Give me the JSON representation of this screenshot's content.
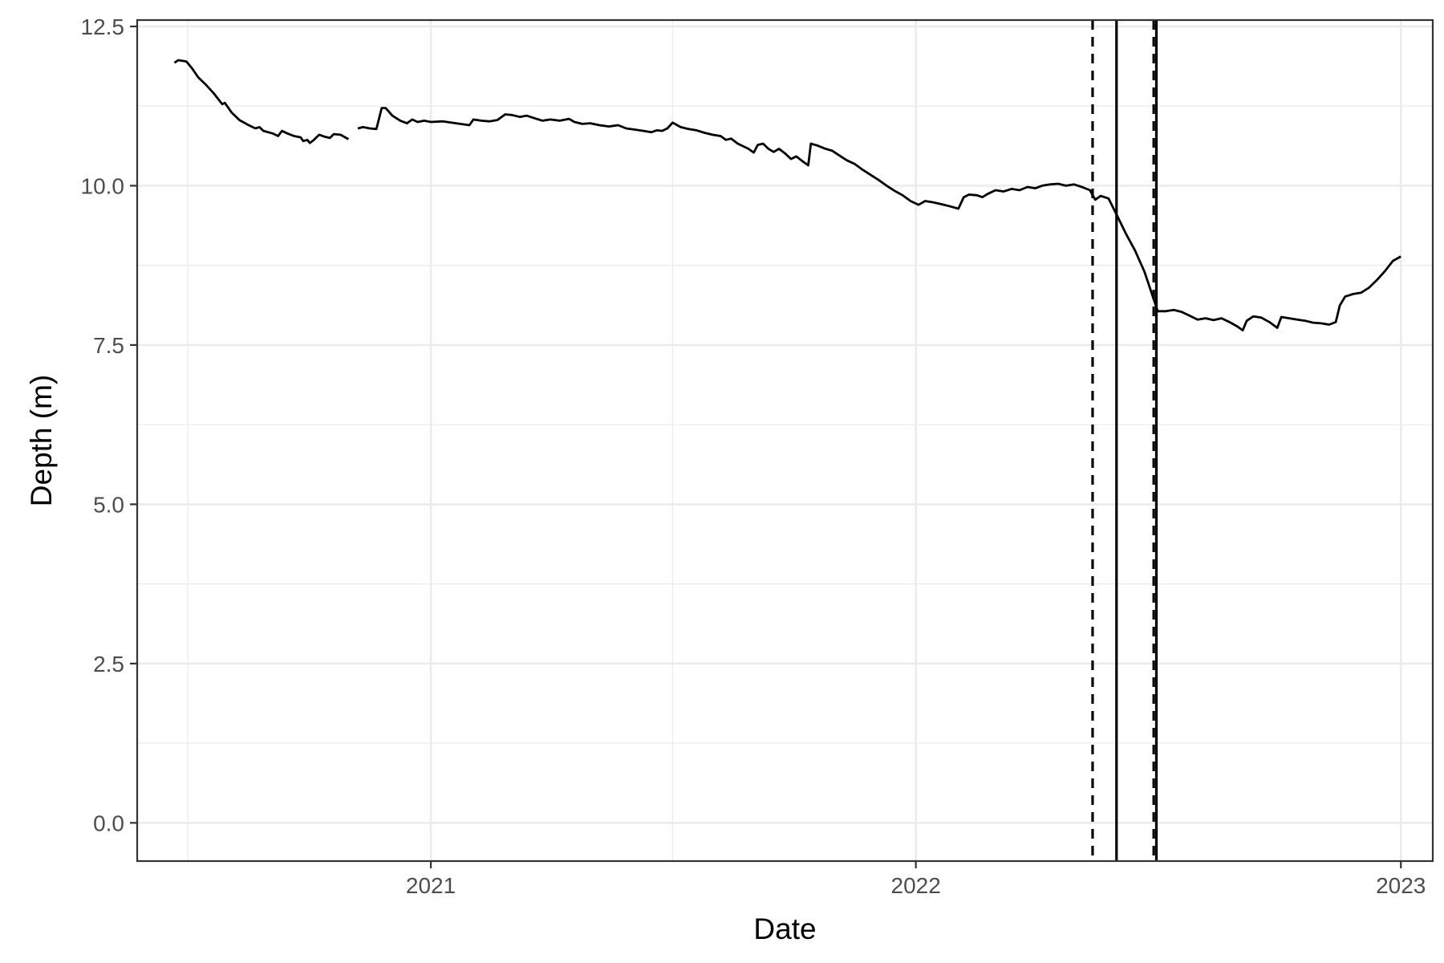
{
  "chart_data": {
    "type": "line",
    "title": "",
    "xlabel": "Date",
    "ylabel": "Depth (m)",
    "x_type": "date",
    "xlim": [
      "2020-05-25",
      "2023-01-25"
    ],
    "ylim": [
      -0.6,
      12.6
    ],
    "x_ticks": [
      {
        "date": "2021-01-01",
        "label": "2021"
      },
      {
        "date": "2022-01-01",
        "label": "2022"
      },
      {
        "date": "2023-01-01",
        "label": "2023"
      }
    ],
    "x_minor_dates": [
      "2020-07-02",
      "2021-07-02",
      "2022-07-02"
    ],
    "y_ticks": [
      {
        "value": 0.0,
        "label": "0.0"
      },
      {
        "value": 2.5,
        "label": "2.5"
      },
      {
        "value": 5.0,
        "label": "5.0"
      },
      {
        "value": 7.5,
        "label": "7.5"
      },
      {
        "value": 10.0,
        "label": "10.0"
      },
      {
        "value": 12.5,
        "label": "12.5"
      }
    ],
    "y_minor": [
      1.25,
      3.75,
      6.25,
      8.75,
      11.25
    ],
    "grid": true,
    "legend": "none",
    "series": [
      {
        "segments": [
          [
            [
              "2020-06-22",
              11.93
            ],
            [
              "2020-06-25",
              11.97
            ],
            [
              "2020-07-01",
              11.95
            ],
            [
              "2020-07-05",
              11.85
            ],
            [
              "2020-07-10",
              11.7
            ],
            [
              "2020-07-16",
              11.58
            ],
            [
              "2020-07-22",
              11.44
            ],
            [
              "2020-07-28",
              11.28
            ],
            [
              "2020-07-30",
              11.3
            ],
            [
              "2020-08-04",
              11.15
            ],
            [
              "2020-08-10",
              11.03
            ],
            [
              "2020-08-16",
              10.96
            ],
            [
              "2020-08-22",
              10.9
            ],
            [
              "2020-08-25",
              10.92
            ],
            [
              "2020-08-28",
              10.86
            ],
            [
              "2020-09-04",
              10.82
            ],
            [
              "2020-09-08",
              10.78
            ],
            [
              "2020-09-11",
              10.86
            ],
            [
              "2020-09-15",
              10.82
            ],
            [
              "2020-09-20",
              10.78
            ],
            [
              "2020-09-25",
              10.76
            ],
            [
              "2020-09-27",
              10.7
            ],
            [
              "2020-09-30",
              10.72
            ],
            [
              "2020-10-02",
              10.67
            ],
            [
              "2020-10-05",
              10.72
            ],
            [
              "2020-10-09",
              10.8
            ],
            [
              "2020-10-13",
              10.77
            ],
            [
              "2020-10-17",
              10.75
            ],
            [
              "2020-10-20",
              10.81
            ],
            [
              "2020-10-25",
              10.8
            ],
            [
              "2020-10-31",
              10.73
            ]
          ],
          [
            [
              "2020-11-07",
              10.9
            ],
            [
              "2020-11-11",
              10.92
            ],
            [
              "2020-11-16",
              10.9
            ],
            [
              "2020-11-21",
              10.89
            ],
            [
              "2020-11-25",
              11.22
            ],
            [
              "2020-11-28",
              11.22
            ],
            [
              "2020-12-03",
              11.1
            ],
            [
              "2020-12-09",
              11.02
            ],
            [
              "2020-12-14",
              10.98
            ],
            [
              "2020-12-18",
              11.04
            ],
            [
              "2020-12-22",
              11.0
            ],
            [
              "2020-12-27",
              11.02
            ],
            [
              "2021-01-01",
              11.0
            ],
            [
              "2021-01-10",
              11.01
            ],
            [
              "2021-01-20",
              10.98
            ],
            [
              "2021-01-30",
              10.95
            ],
            [
              "2021-02-02",
              11.04
            ],
            [
              "2021-02-08",
              11.02
            ],
            [
              "2021-02-14",
              11.01
            ],
            [
              "2021-02-20",
              11.03
            ],
            [
              "2021-02-26",
              11.12
            ],
            [
              "2021-03-03",
              11.11
            ],
            [
              "2021-03-09",
              11.08
            ],
            [
              "2021-03-14",
              11.1
            ],
            [
              "2021-03-20",
              11.06
            ],
            [
              "2021-03-26",
              11.02
            ],
            [
              "2021-04-01",
              11.04
            ],
            [
              "2021-04-08",
              11.02
            ],
            [
              "2021-04-15",
              11.05
            ],
            [
              "2021-04-19",
              11.0
            ],
            [
              "2021-04-25",
              10.97
            ],
            [
              "2021-05-01",
              10.98
            ],
            [
              "2021-05-08",
              10.95
            ],
            [
              "2021-05-15",
              10.93
            ],
            [
              "2021-05-22",
              10.95
            ],
            [
              "2021-05-28",
              10.9
            ],
            [
              "2021-06-04",
              10.88
            ],
            [
              "2021-06-10",
              10.86
            ],
            [
              "2021-06-16",
              10.84
            ],
            [
              "2021-06-20",
              10.87
            ],
            [
              "2021-06-24",
              10.86
            ],
            [
              "2021-06-28",
              10.9
            ],
            [
              "2021-07-02",
              10.99
            ],
            [
              "2021-07-08",
              10.92
            ],
            [
              "2021-07-14",
              10.89
            ],
            [
              "2021-07-20",
              10.87
            ],
            [
              "2021-07-26",
              10.83
            ],
            [
              "2021-08-01",
              10.8
            ],
            [
              "2021-08-07",
              10.78
            ],
            [
              "2021-08-11",
              10.72
            ],
            [
              "2021-08-15",
              10.74
            ],
            [
              "2021-08-20",
              10.66
            ],
            [
              "2021-08-28",
              10.58
            ],
            [
              "2021-09-01",
              10.52
            ],
            [
              "2021-09-04",
              10.64
            ],
            [
              "2021-09-08",
              10.66
            ],
            [
              "2021-09-12",
              10.58
            ],
            [
              "2021-09-16",
              10.53
            ],
            [
              "2021-09-20",
              10.58
            ],
            [
              "2021-09-25",
              10.5
            ],
            [
              "2021-09-29",
              10.42
            ],
            [
              "2021-10-03",
              10.46
            ],
            [
              "2021-10-08",
              10.38
            ],
            [
              "2021-10-12",
              10.32
            ],
            [
              "2021-10-14",
              10.66
            ],
            [
              "2021-10-19",
              10.63
            ],
            [
              "2021-10-25",
              10.58
            ],
            [
              "2021-10-30",
              10.55
            ],
            [
              "2021-11-04",
              10.48
            ],
            [
              "2021-11-10",
              10.4
            ],
            [
              "2021-11-16",
              10.34
            ],
            [
              "2021-11-22",
              10.25
            ],
            [
              "2021-11-28",
              10.17
            ],
            [
              "2021-12-04",
              10.09
            ],
            [
              "2021-12-10",
              10.0
            ],
            [
              "2021-12-16",
              9.92
            ],
            [
              "2021-12-22",
              9.85
            ],
            [
              "2021-12-28",
              9.76
            ],
            [
              "2022-01-03",
              9.7
            ],
            [
              "2022-01-08",
              9.76
            ],
            [
              "2022-01-14",
              9.74
            ],
            [
              "2022-01-20",
              9.71
            ],
            [
              "2022-01-26",
              9.68
            ],
            [
              "2022-02-02",
              9.64
            ],
            [
              "2022-02-06",
              9.82
            ],
            [
              "2022-02-10",
              9.86
            ],
            [
              "2022-02-16",
              9.85
            ],
            [
              "2022-02-20",
              9.82
            ],
            [
              "2022-02-24",
              9.87
            ],
            [
              "2022-03-02",
              9.93
            ],
            [
              "2022-03-08",
              9.91
            ],
            [
              "2022-03-14",
              9.95
            ],
            [
              "2022-03-20",
              9.93
            ],
            [
              "2022-03-26",
              9.98
            ],
            [
              "2022-04-01",
              9.96
            ],
            [
              "2022-04-06",
              10.0
            ],
            [
              "2022-04-12",
              10.02
            ],
            [
              "2022-04-18",
              10.03
            ],
            [
              "2022-04-24",
              10.0
            ],
            [
              "2022-04-30",
              10.02
            ],
            [
              "2022-05-06",
              9.98
            ],
            [
              "2022-05-12",
              9.93
            ],
            [
              "2022-05-16",
              9.78
            ],
            [
              "2022-05-20",
              9.84
            ],
            [
              "2022-05-26",
              9.8
            ],
            [
              "2022-06-01",
              9.55
            ],
            [
              "2022-06-08",
              9.25
            ],
            [
              "2022-06-15",
              8.98
            ],
            [
              "2022-06-22",
              8.65
            ],
            [
              "2022-06-28",
              8.28
            ],
            [
              "2022-07-02",
              8.03
            ],
            [
              "2022-07-08",
              8.03
            ],
            [
              "2022-07-14",
              8.05
            ],
            [
              "2022-07-20",
              8.02
            ],
            [
              "2022-07-26",
              7.96
            ],
            [
              "2022-08-01",
              7.9
            ],
            [
              "2022-08-07",
              7.92
            ],
            [
              "2022-08-13",
              7.89
            ],
            [
              "2022-08-19",
              7.92
            ],
            [
              "2022-08-25",
              7.86
            ],
            [
              "2022-08-31",
              7.79
            ],
            [
              "2022-09-04",
              7.73
            ],
            [
              "2022-09-07",
              7.88
            ],
            [
              "2022-09-12",
              7.95
            ],
            [
              "2022-09-18",
              7.93
            ],
            [
              "2022-09-24",
              7.86
            ],
            [
              "2022-09-30",
              7.77
            ],
            [
              "2022-10-03",
              7.94
            ],
            [
              "2022-10-09",
              7.92
            ],
            [
              "2022-10-15",
              7.9
            ],
            [
              "2022-10-21",
              7.88
            ],
            [
              "2022-10-27",
              7.85
            ],
            [
              "2022-11-02",
              7.84
            ],
            [
              "2022-11-08",
              7.82
            ],
            [
              "2022-11-13",
              7.86
            ],
            [
              "2022-11-16",
              8.12
            ],
            [
              "2022-11-20",
              8.26
            ],
            [
              "2022-11-26",
              8.3
            ],
            [
              "2022-12-02",
              8.32
            ],
            [
              "2022-12-08",
              8.4
            ],
            [
              "2022-12-14",
              8.52
            ],
            [
              "2022-12-20",
              8.66
            ],
            [
              "2022-12-26",
              8.82
            ],
            [
              "2023-01-01",
              8.89
            ]
          ]
        ]
      }
    ],
    "vertical_lines": [
      {
        "date": "2022-05-14",
        "style": "dashed"
      },
      {
        "date": "2022-06-01",
        "style": "solid"
      },
      {
        "date": "2022-06-29",
        "style": "dashed"
      },
      {
        "date": "2022-07-01",
        "style": "solid"
      }
    ]
  }
}
